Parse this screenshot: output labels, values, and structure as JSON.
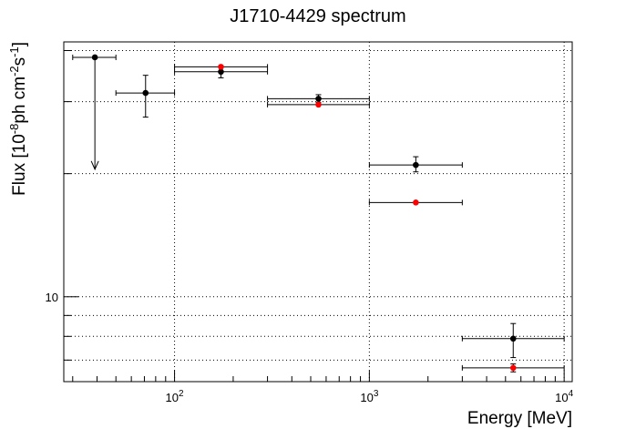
{
  "chart_data": {
    "type": "scatter",
    "title": "J1710-4429 spectrum",
    "xlabel": "Energy [MeV]",
    "ylabel_parts": [
      "Flux [10",
      "-8",
      "ph cm",
      "-2",
      "s",
      "-1",
      "]"
    ],
    "xscale": "log",
    "yscale": "log",
    "xlim": [
      27,
      11000
    ],
    "ylim": [
      6.2,
      42
    ],
    "grid": true,
    "x_tick_labels": [
      {
        "value": 100,
        "base": "10",
        "exp": "2"
      },
      {
        "value": 1000,
        "base": "10",
        "exp": "3"
      },
      {
        "value": 10000,
        "base": "10",
        "exp": "4"
      }
    ],
    "y_tick_labels": [
      {
        "value": 10,
        "text": "10"
      }
    ],
    "series": [
      {
        "color": "#000000",
        "points": [
          {
            "x": 39,
            "xlo": 30,
            "xhi": 50,
            "y": 38.5,
            "upper_limit": true,
            "arrow_to": 20.5
          },
          {
            "x": 71,
            "xlo": 50,
            "xhi": 100,
            "y": 31.5,
            "ylo": 27.5,
            "yhi": 34.8
          },
          {
            "x": 173,
            "xlo": 100,
            "xhi": 300,
            "y": 35.5,
            "ylo": 34.3,
            "yhi": 36.7
          },
          {
            "x": 548,
            "xlo": 300,
            "xhi": 1000,
            "y": 30.5,
            "ylo": 29.9,
            "yhi": 31.2
          },
          {
            "x": 1732,
            "xlo": 1000,
            "xhi": 3000,
            "y": 21.0,
            "ylo": 20.2,
            "yhi": 22.0
          },
          {
            "x": 5477,
            "xlo": 3000,
            "xhi": 10000,
            "y": 7.9,
            "ylo": 7.1,
            "yhi": 8.6
          }
        ]
      },
      {
        "color": "#ff0000",
        "points": [
          {
            "x": 173,
            "xlo": 100,
            "xhi": 300,
            "y": 36.5
          },
          {
            "x": 548,
            "xlo": 300,
            "xhi": 1000,
            "y": 29.5
          },
          {
            "x": 1732,
            "xlo": 1000,
            "xhi": 3000,
            "y": 17.0
          },
          {
            "x": 5477,
            "xlo": 3000,
            "xhi": 10000,
            "y": 6.7,
            "ylo": 6.55,
            "yhi": 6.85
          }
        ]
      }
    ]
  }
}
